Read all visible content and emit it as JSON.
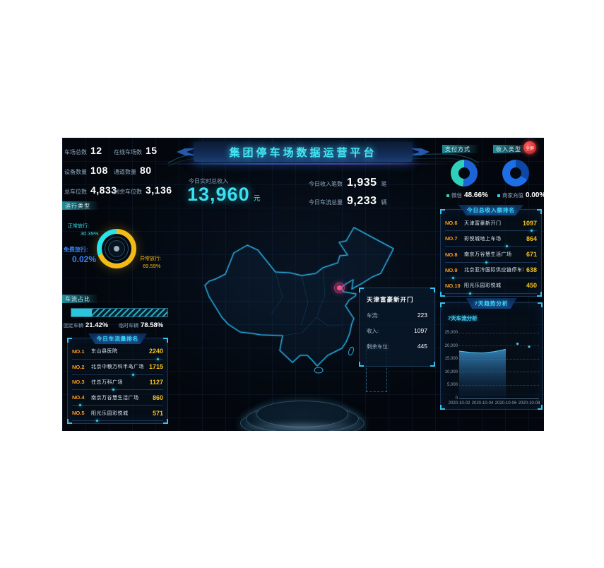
{
  "page": {
    "title": "集团停车场数据运营平台",
    "fullscreen_button": "全屏"
  },
  "stats": {
    "left": [
      {
        "label": "车场总数",
        "value": "12"
      },
      {
        "label": "在线车场数",
        "value": "15"
      },
      {
        "label": "设备数量",
        "value": "108"
      },
      {
        "label": "通道数量",
        "value": "80"
      },
      {
        "label": "总车位数",
        "value": "4,833"
      },
      {
        "label": "剩余车位数",
        "value": "3,136"
      }
    ],
    "revenue": {
      "label": "今日实时总收入",
      "value": "13,960",
      "unit": "元"
    },
    "income_count": {
      "label": "今日收入笔数",
      "value": "1,935",
      "unit": "笔"
    },
    "traffic_total": {
      "label": "今日车流总量",
      "value": "9,233",
      "unit": "辆"
    }
  },
  "payment": {
    "header": "支付方式",
    "legend_label": "微信",
    "legend_value": "48.66%"
  },
  "income_type": {
    "header": "收入类型",
    "legend_label": "商家充值",
    "legend_value": "0.00%"
  },
  "run_type": {
    "header": "运行类型",
    "normal": {
      "label": "正常放行:",
      "value": "30.39%"
    },
    "free": {
      "label": "免费放行:",
      "value": "0.02%"
    },
    "abnormal": {
      "label": "异常放行:",
      "value": "69.59%"
    }
  },
  "traffic_ratio": {
    "header": "车流占比",
    "fixed": {
      "label": "固定车辆",
      "value": "21.42%"
    },
    "temp": {
      "label": "临时车辆",
      "value": "78.58%"
    }
  },
  "traffic_rank": {
    "title": "今日车流量排名",
    "rows": [
      {
        "no": "NO.1",
        "name": "东山县医院",
        "value": "2240"
      },
      {
        "no": "NO.2",
        "name": "北京中粮万科半岛广场",
        "value": "1715"
      },
      {
        "no": "NO.3",
        "name": "住总万科广场",
        "value": "1127"
      },
      {
        "no": "NO.4",
        "name": "南京万谷慧生活广场",
        "value": "860"
      },
      {
        "no": "NO.5",
        "name": "阳光乐园彩悦城",
        "value": "571"
      }
    ]
  },
  "income_rank": {
    "title": "今日总收入额排名",
    "rows": [
      {
        "no": "NO.6",
        "name": "天津富豪新开门",
        "value": "1097"
      },
      {
        "no": "NO.7",
        "name": "彩悦城地上车场",
        "value": "864"
      },
      {
        "no": "NO.8",
        "name": "南京万谷慧生活广场",
        "value": "671"
      },
      {
        "no": "NO.9",
        "name": "北京亚冷国际供应链停车场",
        "value": "638"
      },
      {
        "no": "NO.10",
        "name": "阳光乐园彩悦城",
        "value": "450"
      }
    ]
  },
  "map_tooltip": {
    "title": "天津富豪新开门",
    "rows": [
      {
        "label": "车流:",
        "value": "223"
      },
      {
        "label": "收入:",
        "value": "1097"
      },
      {
        "label": "剩余车位:",
        "value": "445"
      }
    ]
  },
  "trend": {
    "panel_title": "7天趋势分析",
    "subtitle": "7天车流分析"
  },
  "chart_data": [
    {
      "type": "pie",
      "title": "支付方式",
      "slices": [
        {
          "name": "其他",
          "pct": 51.34,
          "color": "#1a64d8"
        },
        {
          "name": "微信",
          "pct": 48.66,
          "color": "#2fd0bb"
        }
      ],
      "legend": [
        "微信 48.66%"
      ]
    },
    {
      "type": "pie",
      "title": "收入类型",
      "slices": [
        {
          "name": "其他",
          "pct": 33.3,
          "color": "#0d47a8"
        },
        {
          "name": "其他",
          "pct": 66.7,
          "color": "#1e6ee8"
        },
        {
          "name": "商家充值",
          "pct": 0.0,
          "color": "#2bd4e8"
        }
      ],
      "legend": [
        "商家充值 0.00%"
      ]
    },
    {
      "type": "pie",
      "title": "运行类型",
      "slices": [
        {
          "name": "异常放行",
          "pct": 69.59,
          "color": "#f2bb16"
        },
        {
          "name": "免费放行",
          "pct": 0.02,
          "color": "#3b82f7"
        },
        {
          "name": "正常放行",
          "pct": 30.39,
          "color": "#27e3ea"
        }
      ]
    },
    {
      "type": "bar",
      "title": "车流占比",
      "categories": [
        "固定车辆",
        "临时车辆"
      ],
      "values": [
        21.42,
        78.58
      ]
    },
    {
      "type": "area",
      "title": "7天车流分析",
      "x": [
        "2020-10-02",
        "2020-10-03",
        "2020-10-04",
        "2020-10-05",
        "2020-10-06"
      ],
      "values": [
        18000,
        17500,
        17300,
        17800,
        18700
      ],
      "scatter": [
        {
          "x": "2020-10-07",
          "y": 20800
        },
        {
          "x": "2020-10-08",
          "y": 19700
        }
      ],
      "ylim": [
        0,
        25000
      ],
      "yticks": [
        "0",
        "5,000",
        "10,000",
        "15,000",
        "20,000",
        "25,000"
      ],
      "xticks": [
        "2020-10-02",
        "2020-10-04",
        "2020-10-06",
        "2020-10-08"
      ]
    }
  ]
}
